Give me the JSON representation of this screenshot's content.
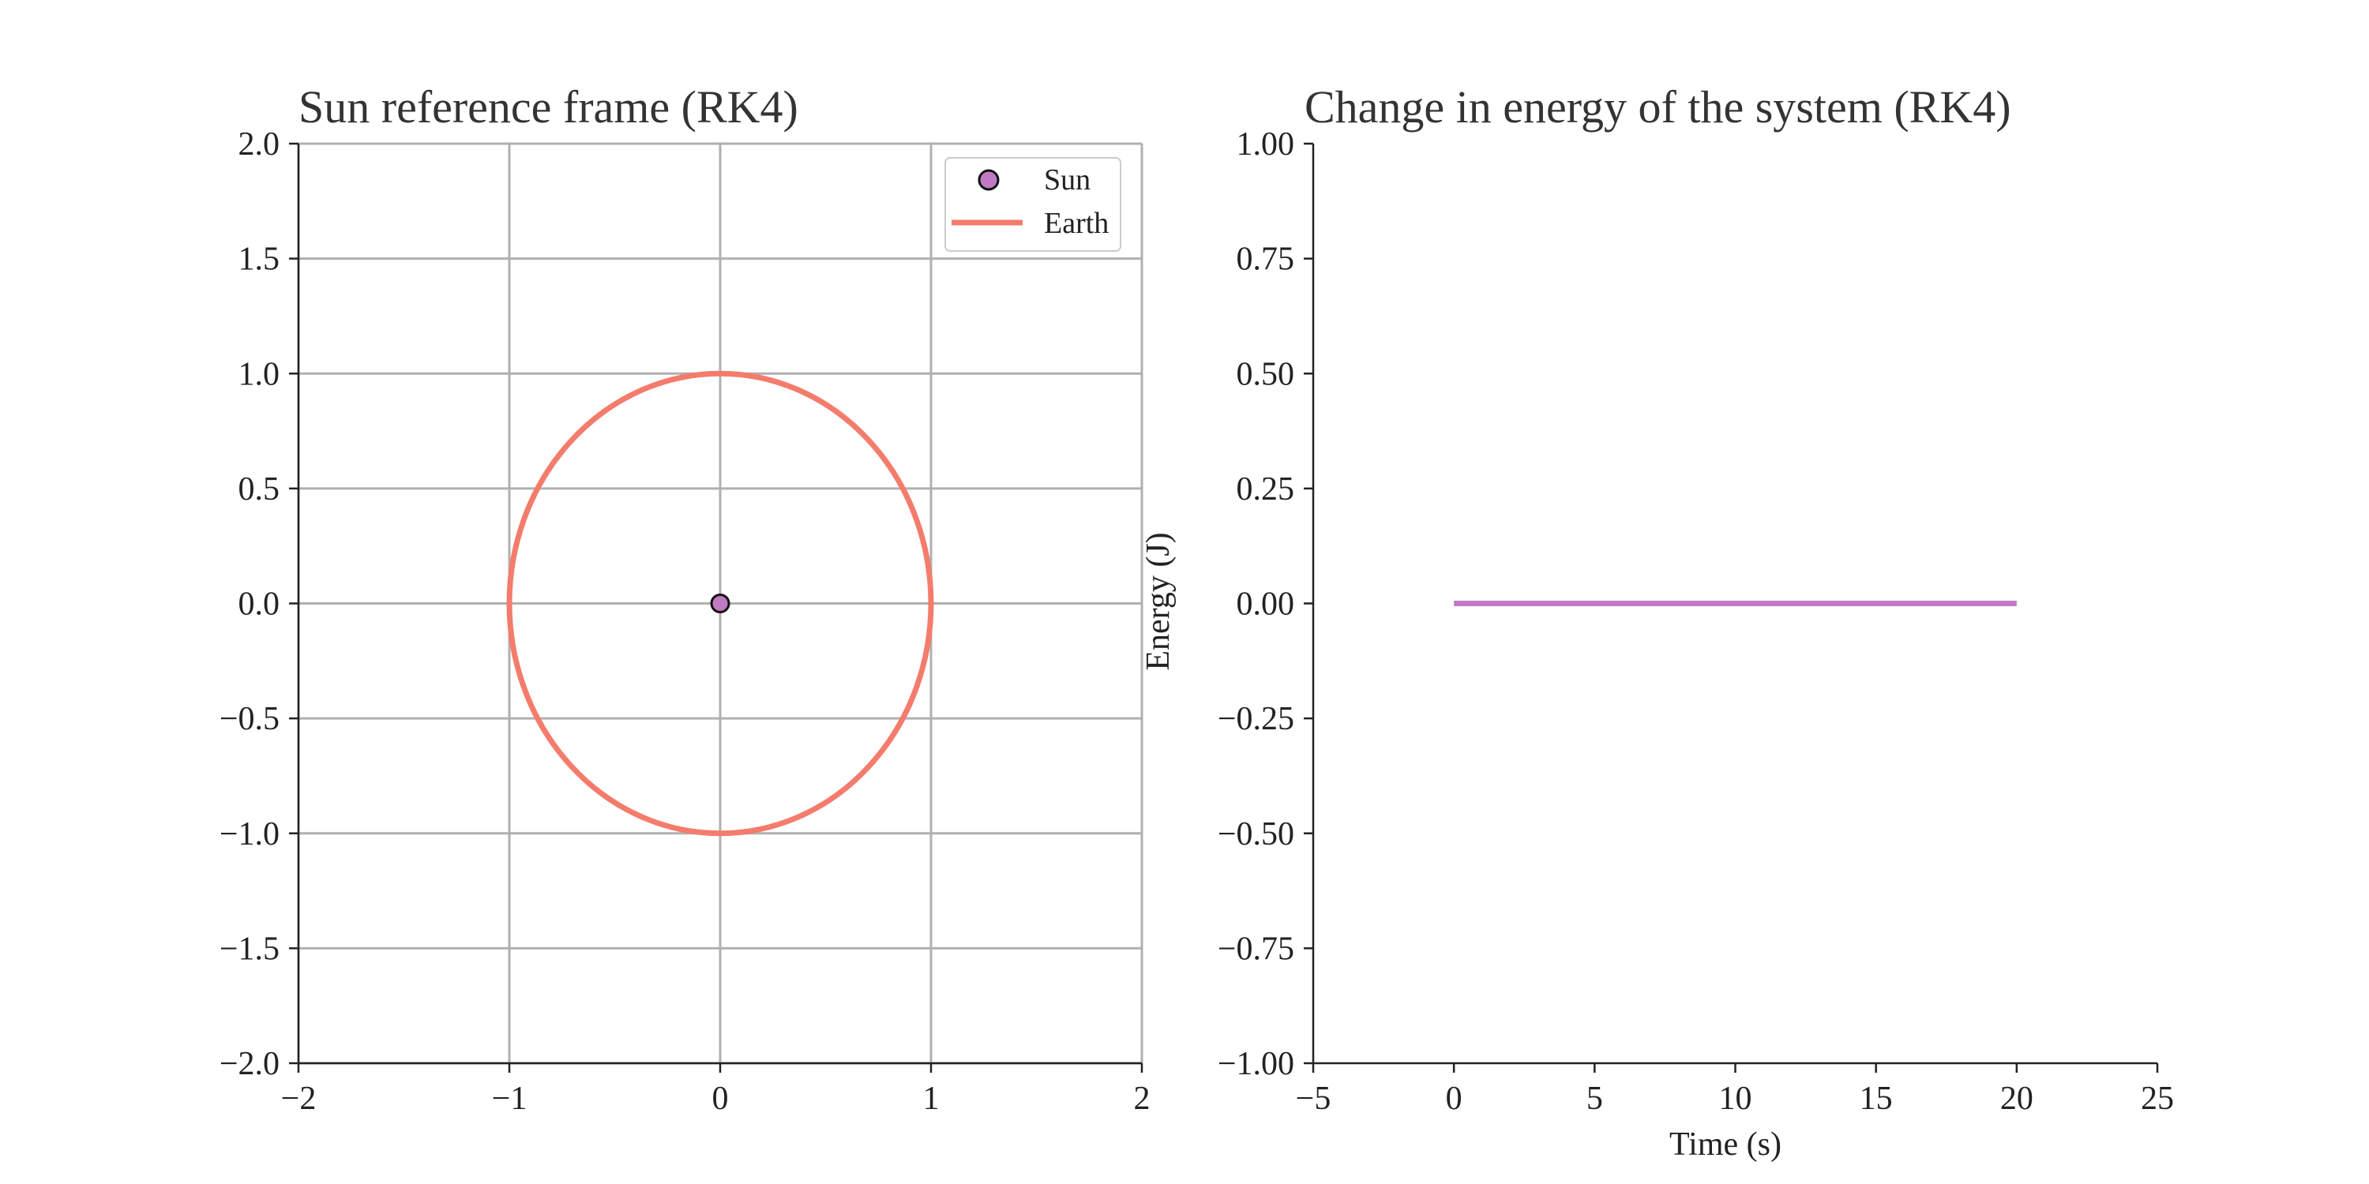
{
  "chart_data": [
    {
      "type": "line",
      "title": "Sun reference frame (RK4)",
      "xlabel": "",
      "ylabel": "",
      "xlim": [
        -2,
        2
      ],
      "ylim": [
        -2,
        2
      ],
      "xticks": [
        -2,
        -1,
        0,
        1,
        2
      ],
      "yticks": [
        -2.0,
        -1.5,
        -1.0,
        -0.5,
        0.0,
        0.5,
        1.0,
        1.5,
        2.0
      ],
      "xtick_labels": [
        "−2",
        "−1",
        "0",
        "1",
        "2"
      ],
      "ytick_labels": [
        "−2.0",
        "−1.5",
        "−1.0",
        "−0.5",
        "0.0",
        "0.5",
        "1.0",
        "1.5",
        "2.0"
      ],
      "grid": true,
      "legend": "top-right",
      "series": [
        {
          "name": "Sun",
          "kind": "marker",
          "x": [
            0
          ],
          "y": [
            0
          ],
          "color": "#c07ac4"
        },
        {
          "name": "Earth",
          "kind": "orbit",
          "center": [
            0,
            0
          ],
          "radius": 1.0,
          "color": "#f47c6c"
        }
      ]
    },
    {
      "type": "line",
      "title": "Change in energy of the system (RK4)",
      "xlabel": "Time (s)",
      "ylabel": "Energy (J)",
      "xlim": [
        -5,
        25
      ],
      "ylim": [
        -1.0,
        1.0
      ],
      "xticks": [
        -5,
        0,
        5,
        10,
        15,
        20,
        25
      ],
      "yticks": [
        -1.0,
        -0.75,
        -0.5,
        -0.25,
        0.0,
        0.25,
        0.5,
        0.75,
        1.0
      ],
      "xtick_labels": [
        "−5",
        "0",
        "5",
        "10",
        "15",
        "20",
        "25"
      ],
      "ytick_labels": [
        "−1.00",
        "−0.75",
        "−0.50",
        "−0.25",
        "0.00",
        "0.25",
        "0.50",
        "0.75",
        "1.00"
      ],
      "grid": false,
      "series": [
        {
          "x": [
            0,
            20
          ],
          "y": [
            0,
            0
          ],
          "color": "#c07ac4"
        }
      ]
    }
  ]
}
